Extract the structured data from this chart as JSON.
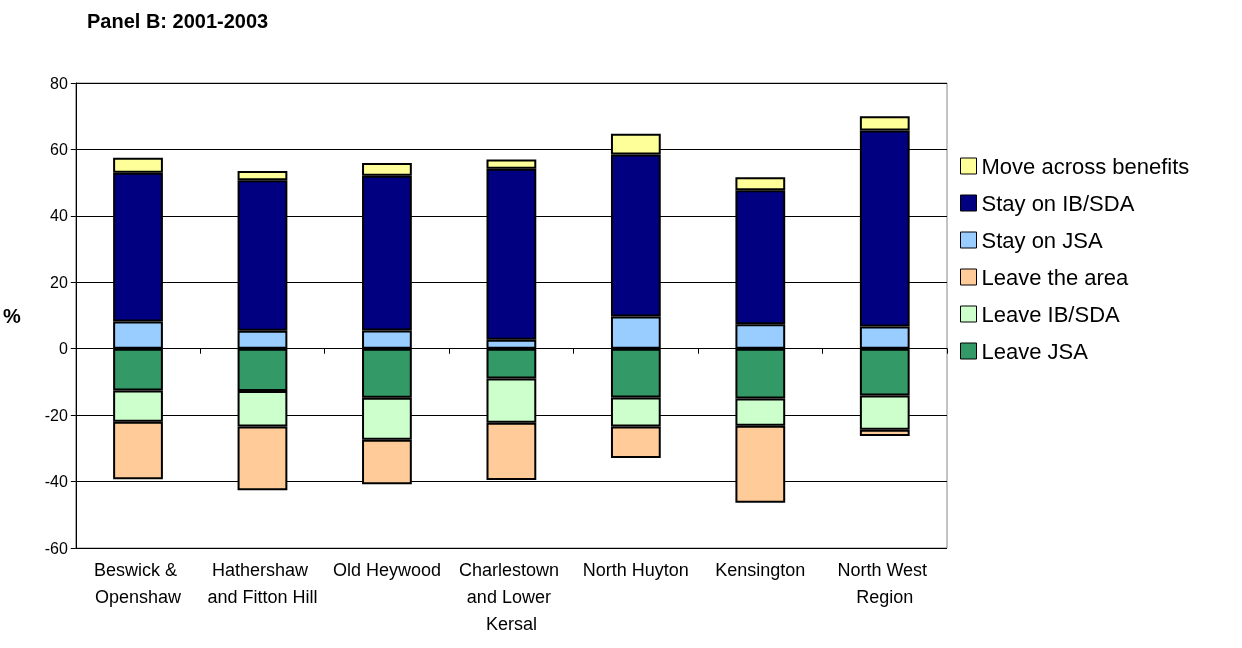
{
  "chart_data": {
    "type": "bar",
    "title": "Panel B: 2001-2003",
    "ylabel": "%",
    "categories": [
      "Beswick & Openshaw",
      "Hathershaw and Fitton Hill",
      "Old Heywood",
      "Charlestown and Lower Kersal",
      "North Huyton",
      "Kensington",
      "North West Region"
    ],
    "stacked": true,
    "series": [
      {
        "name": "Leave JSA",
        "color": "#339966",
        "values": [
          -12.6,
          -12.7,
          -14.8,
          -9.0,
          -14.7,
          -15.0,
          -14.1
        ]
      },
      {
        "name": "Leave IB/SDA",
        "color": "#ccffcc",
        "values": [
          -9.4,
          -10.7,
          -12.6,
          -13.3,
          -8.7,
          -8.2,
          -10.3
        ]
      },
      {
        "name": "Leave the area",
        "color": "#ffcc99",
        "values": [
          -17.3,
          -19.2,
          -13.4,
          -17.2,
          -9.5,
          -23.2,
          -1.9
        ]
      },
      {
        "name": "Stay on JSA",
        "color": "#99ccff",
        "values": [
          8.2,
          5.4,
          5.5,
          2.7,
          9.7,
          7.4,
          6.7
        ]
      },
      {
        "name": "Stay on IB/SDA",
        "color": "#000080",
        "values": [
          44.8,
          45.3,
          46.6,
          51.5,
          48.8,
          40.3,
          59.0
        ]
      },
      {
        "name": "Move across benefits",
        "color": "#ffff99",
        "values": [
          4.5,
          2.8,
          3.8,
          2.8,
          6.2,
          3.9,
          4.3
        ]
      }
    ],
    "ylim": [
      -60,
      80
    ],
    "yticks": [
      -60,
      -40,
      -20,
      0,
      20,
      40,
      60,
      80
    ],
    "grid": "y",
    "legend": "right"
  }
}
